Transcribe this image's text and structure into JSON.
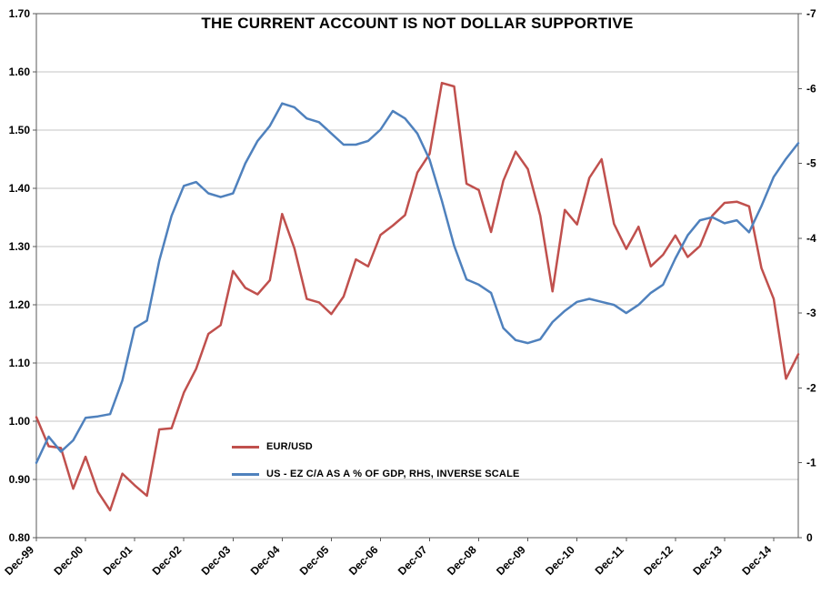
{
  "chart_data": {
    "type": "line",
    "title": "THE CURRENT ACCOUNT IS NOT DOLLAR SUPPORTIVE",
    "grid": "horizontal",
    "legend_position": "inside-left-bottom",
    "colors": {
      "grid": "#C6C6C6",
      "axis": "#595959",
      "background": "#FFFFFF"
    },
    "x_tick_every": 4,
    "x_tick_labels": [
      "Dec-99",
      "Dec-00",
      "Dec-01",
      "Dec-02",
      "Dec-03",
      "Dec-04",
      "Dec-05",
      "Dec-06",
      "Dec-07",
      "Dec-08",
      "Dec-09",
      "Dec-10",
      "Dec-11",
      "Dec-12",
      "Dec-13",
      "Dec-14"
    ],
    "categories": [
      "Dec-99",
      "Mar-00",
      "Jun-00",
      "Sep-00",
      "Dec-00",
      "Mar-01",
      "Jun-01",
      "Sep-01",
      "Dec-01",
      "Mar-02",
      "Jun-02",
      "Sep-02",
      "Dec-02",
      "Mar-03",
      "Jun-03",
      "Sep-03",
      "Dec-03",
      "Mar-04",
      "Jun-04",
      "Sep-04",
      "Dec-04",
      "Mar-05",
      "Jun-05",
      "Sep-05",
      "Dec-05",
      "Mar-06",
      "Jun-06",
      "Sep-06",
      "Dec-06",
      "Mar-07",
      "Jun-07",
      "Sep-07",
      "Dec-07",
      "Mar-08",
      "Jun-08",
      "Sep-08",
      "Dec-08",
      "Mar-09",
      "Jun-09",
      "Sep-09",
      "Dec-09",
      "Mar-10",
      "Jun-10",
      "Sep-10",
      "Dec-10",
      "Mar-11",
      "Jun-11",
      "Sep-11",
      "Dec-11",
      "Mar-12",
      "Jun-12",
      "Sep-12",
      "Dec-12",
      "Mar-13",
      "Jun-13",
      "Sep-13",
      "Dec-13",
      "Mar-14",
      "Jun-14",
      "Sep-14",
      "Dec-14",
      "Mar-15",
      "Jun-15"
    ],
    "left_axis": {
      "min": 0.8,
      "max": 1.7,
      "step": 0.1,
      "ticks": [
        "1.70",
        "1.60",
        "1.50",
        "1.40",
        "1.30",
        "1.20",
        "1.10",
        "1.00",
        "0.90",
        "0.80"
      ]
    },
    "right_axis": {
      "top": -7,
      "bottom": 0,
      "note": "inverse scale",
      "ticks": [
        "-7",
        "-6",
        "-5",
        "-4",
        "-3",
        "-2",
        "-1",
        "0"
      ]
    },
    "series": [
      {
        "name": "EUR/USD",
        "axis": "left",
        "color": "#C0504D",
        "values": [
          1.007,
          0.957,
          0.954,
          0.884,
          0.939,
          0.879,
          0.847,
          0.91,
          0.89,
          0.872,
          0.986,
          0.988,
          1.049,
          1.09,
          1.15,
          1.165,
          1.258,
          1.229,
          1.218,
          1.242,
          1.356,
          1.297,
          1.21,
          1.204,
          1.184,
          1.214,
          1.278,
          1.266,
          1.32,
          1.336,
          1.354,
          1.427,
          1.459,
          1.581,
          1.575,
          1.408,
          1.397,
          1.325,
          1.413,
          1.463,
          1.433,
          1.353,
          1.223,
          1.363,
          1.338,
          1.418,
          1.45,
          1.339,
          1.296,
          1.334,
          1.266,
          1.286,
          1.319,
          1.282,
          1.301,
          1.353,
          1.375,
          1.377,
          1.369,
          1.263,
          1.21,
          1.073,
          1.115
        ]
      },
      {
        "name": "US - EZ C/A AS A % OF GDP, RHS, INVERSE SCALE",
        "axis": "right",
        "color": "#4F81BD",
        "values": [
          -1.0,
          -1.35,
          -1.15,
          -1.3,
          -1.6,
          -1.62,
          -1.65,
          -2.1,
          -2.8,
          -2.9,
          -3.7,
          -4.3,
          -4.7,
          -4.75,
          -4.6,
          -4.55,
          -4.6,
          -5.0,
          -5.3,
          -5.5,
          -5.8,
          -5.75,
          -5.6,
          -5.55,
          -5.4,
          -5.25,
          -5.25,
          -5.3,
          -5.45,
          -5.7,
          -5.6,
          -5.4,
          -5.05,
          -4.5,
          -3.9,
          -3.45,
          -3.38,
          -3.27,
          -2.8,
          -2.64,
          -2.6,
          -2.65,
          -2.88,
          -3.03,
          -3.15,
          -3.19,
          -3.15,
          -3.11,
          -3.0,
          -3.11,
          -3.27,
          -3.38,
          -3.73,
          -4.04,
          -4.24,
          -4.28,
          -4.2,
          -4.24,
          -4.08,
          -4.43,
          -4.82,
          -5.06,
          -5.27
        ]
      }
    ]
  }
}
